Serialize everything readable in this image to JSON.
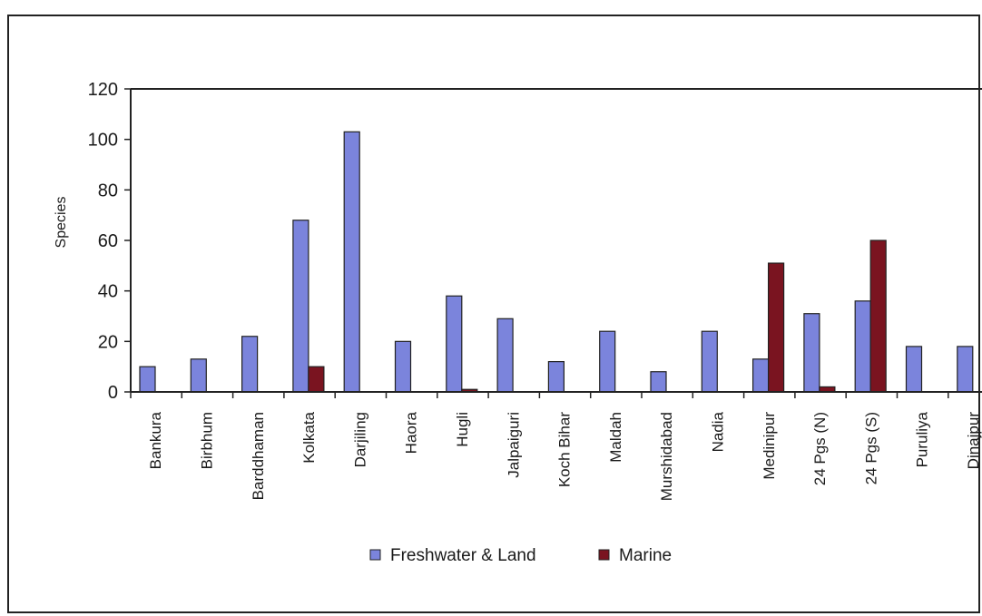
{
  "chart_data": {
    "type": "bar",
    "ylabel": "Species",
    "ylim": [
      0,
      120
    ],
    "yticks": [
      0,
      20,
      40,
      60,
      80,
      100,
      120
    ],
    "categories": [
      "Bankura",
      "Birbhum",
      "Barddhaman",
      "Kolkata",
      "Darjiling",
      "Haora",
      "Hugli",
      "Jalpaiguri",
      "Koch Bihar",
      "Maldah",
      "Murshidabad",
      "Nadia",
      "Medinipur",
      "24 Pgs (N)",
      "24 Pgs (S)",
      "Puruliya",
      "Dinajpur"
    ],
    "series": [
      {
        "name": "Freshwater & Land",
        "color": "#7b84dc",
        "values": [
          10,
          13,
          22,
          68,
          103,
          20,
          38,
          29,
          12,
          24,
          8,
          24,
          13,
          31,
          36,
          18,
          18
        ]
      },
      {
        "name": "Marine",
        "color": "#7a1420",
        "values": [
          0,
          0,
          0,
          10,
          0,
          0,
          1,
          0,
          0,
          0,
          0,
          0,
          51,
          2,
          60,
          0,
          0
        ]
      }
    ],
    "grid": false,
    "legend_placement": "bottom"
  }
}
